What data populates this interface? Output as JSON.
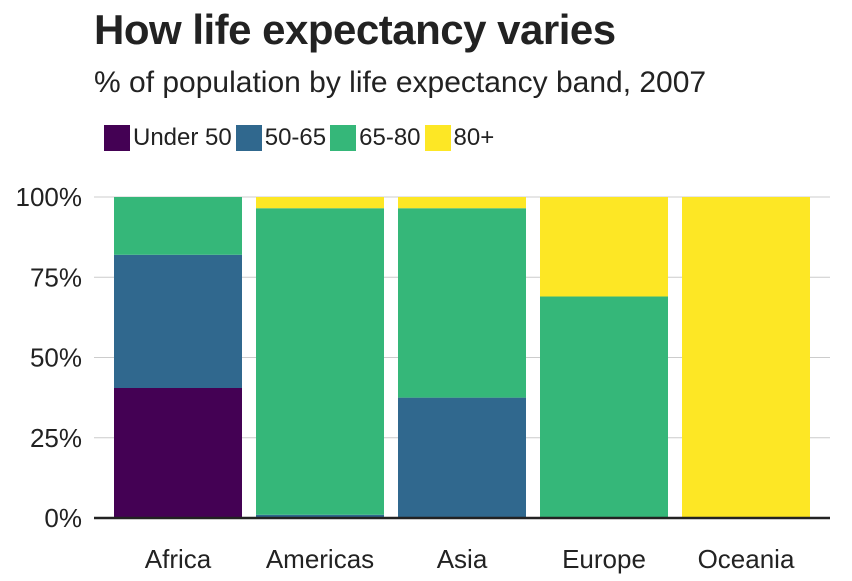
{
  "chart_data": {
    "type": "bar",
    "stacked": true,
    "title": "How life expectancy varies",
    "subtitle": "% of population by life expectancy band, 2007",
    "categories": [
      "Africa",
      "Americas",
      "Asia",
      "Europe",
      "Oceania"
    ],
    "series": [
      {
        "name": "Under 50",
        "color": "#440154",
        "values": [
          40.5,
          0,
          0,
          0,
          0
        ]
      },
      {
        "name": "50-65",
        "color": "#30688E",
        "values": [
          41.5,
          1,
          37.5,
          0,
          0
        ]
      },
      {
        "name": "65-80",
        "color": "#35B779",
        "values": [
          18,
          95.5,
          59,
          69,
          0
        ]
      },
      {
        "name": "80+",
        "color": "#FDE725",
        "values": [
          0,
          3.5,
          3.5,
          31,
          100
        ]
      }
    ],
    "ylim": [
      0,
      100
    ],
    "yticks": [
      0,
      25,
      50,
      75,
      100
    ],
    "ytick_labels": [
      "0%",
      "25%",
      "50%",
      "75%",
      "100%"
    ],
    "legend": "top-left",
    "grid": true
  }
}
